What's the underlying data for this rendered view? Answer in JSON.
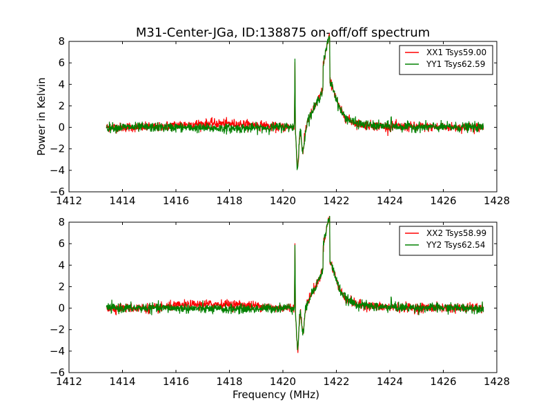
{
  "figure": {
    "title": "M31-Center-JGa, ID:138875 on-off/off spectrum"
  },
  "chart_data": [
    {
      "type": "line",
      "title": "M31-Center-JGa, ID:138875 on-off/off spectrum",
      "xlabel": "",
      "ylabel": "Power in Kelvin",
      "xlim": [
        1412,
        1428
      ],
      "ylim": [
        -6,
        8
      ],
      "xticks": [
        1412,
        1414,
        1416,
        1418,
        1420,
        1422,
        1424,
        1426,
        1428
      ],
      "yticks": [
        -6,
        -4,
        -2,
        0,
        2,
        4,
        6,
        8
      ],
      "grid": false,
      "legend_position": "top-right",
      "x_range_of_data": [
        1413.4,
        1427.5
      ],
      "series": [
        {
          "name": "XX1 Tsys59.00",
          "color": "#ff0000"
        },
        {
          "name": "YY1 Tsys62.59",
          "color": "#008000"
        }
      ]
    },
    {
      "type": "line",
      "title": "",
      "xlabel": "Frequency (MHz)",
      "ylabel": "",
      "xlim": [
        1412,
        1428
      ],
      "ylim": [
        -6,
        8
      ],
      "xticks": [
        1412,
        1414,
        1416,
        1418,
        1420,
        1422,
        1424,
        1426,
        1428
      ],
      "yticks": [
        -6,
        -4,
        -2,
        0,
        2,
        4,
        6,
        8
      ],
      "grid": false,
      "legend_position": "top-right",
      "x_range_of_data": [
        1413.4,
        1427.5
      ],
      "series": [
        {
          "name": "XX2 Tsys58.99",
          "color": "#ff0000"
        },
        {
          "name": "YY2 Tsys62.54",
          "color": "#008000"
        }
      ]
    }
  ],
  "spectrum_features": {
    "baseline_level": 0.1,
    "negative_dip": {
      "x": 1420.55,
      "y": -4.1
    },
    "sharp_spike": {
      "x": 1420.45,
      "y": 6.3
    },
    "broad_peak": {
      "x": 1421.75,
      "y": 4.5
    },
    "narrow_spike_green": {
      "x": 1424.05,
      "y": 1.3
    }
  }
}
